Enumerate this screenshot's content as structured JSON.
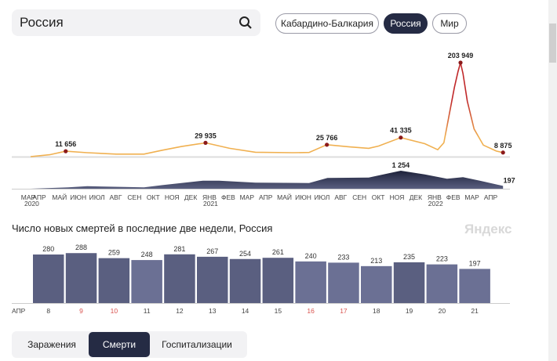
{
  "search": {
    "value": "Россия",
    "icon": "search-icon"
  },
  "regions": [
    {
      "label": "Кабардино-Балкария",
      "active": false
    },
    {
      "label": "Россия",
      "active": true
    },
    {
      "label": "Мир",
      "active": false
    }
  ],
  "overview": {
    "months": [
      "МАР",
      "АПР",
      "МАЙ",
      "ИЮН",
      "ИЮЛ",
      "АВГ",
      "СЕН",
      "ОКТ",
      "НОЯ",
      "ДЕК",
      "ЯНВ",
      "ФЕВ",
      "МАР",
      "АПР",
      "МАЙ",
      "ИЮН",
      "ИЮЛ",
      "АВГ",
      "СЕН",
      "ОКТ",
      "НОЯ",
      "ДЕК",
      "ЯНВ",
      "ФЕВ",
      "МАР",
      "АПР"
    ],
    "years": [
      {
        "month_index": 0,
        "label": "2020"
      },
      {
        "month_index": 10,
        "label": "2021"
      },
      {
        "month_index": 22,
        "label": "2022"
      }
    ],
    "cases_labels": [
      "11 656",
      "29 935",
      "25 766",
      "41 335",
      "203 949",
      "8 875"
    ],
    "deaths_labels": [
      "1 254",
      "197"
    ],
    "colors": {
      "cases_low": "#f0b050",
      "cases_high": "#c0282a",
      "deaths": "#3a3f62"
    }
  },
  "chart_data": [
    {
      "type": "line",
      "name": "cases",
      "x": [
        "2020-03-15",
        "2020-04-15",
        "2020-05-11",
        "2020-06-15",
        "2020-08-01",
        "2020-09-15",
        "2020-10-15",
        "2020-11-15",
        "2020-12-24",
        "2021-02-01",
        "2021-03-15",
        "2021-05-15",
        "2021-06-10",
        "2021-07-09",
        "2021-08-15",
        "2021-09-15",
        "2021-10-01",
        "2021-11-06",
        "2021-12-15",
        "2022-01-05",
        "2022-01-15",
        "2022-02-01",
        "2022-02-07",
        "2022-02-11",
        "2022-02-15",
        "2022-02-22",
        "2022-03-05",
        "2022-03-20",
        "2022-04-10",
        "2022-04-21"
      ],
      "y": [
        0,
        4000,
        11656,
        8500,
        5500,
        5500,
        14000,
        22000,
        29935,
        18000,
        9500,
        8500,
        9000,
        25766,
        21000,
        18000,
        23000,
        41335,
        28000,
        15000,
        30000,
        150000,
        185000,
        203949,
        180000,
        120000,
        60000,
        25000,
        12000,
        8875
      ],
      "ylim": [
        0,
        203949
      ]
    },
    {
      "type": "area",
      "name": "deaths",
      "x": [
        "2020-03-15",
        "2020-05-15",
        "2020-06-15",
        "2020-08-15",
        "2020-09-15",
        "2020-10-15",
        "2020-12-20",
        "2021-01-15",
        "2021-03-15",
        "2021-06-10",
        "2021-07-10",
        "2021-09-15",
        "2021-11-06",
        "2021-12-15",
        "2022-01-20",
        "2022-02-15",
        "2022-03-15",
        "2022-04-21"
      ],
      "y": [
        0,
        100,
        180,
        120,
        100,
        250,
        560,
        560,
        420,
        400,
        750,
        780,
        1254,
        1000,
        700,
        800,
        550,
        197
      ],
      "ylim": [
        0,
        1254
      ]
    },
    {
      "type": "bar",
      "title": "Число новых смертей в последние две недели, Россия",
      "month_label": "АПР",
      "categories": [
        "8",
        "9",
        "10",
        "11",
        "12",
        "13",
        "14",
        "15",
        "16",
        "17",
        "18",
        "19",
        "20",
        "21"
      ],
      "weekend": [
        false,
        true,
        true,
        false,
        false,
        false,
        false,
        false,
        true,
        true,
        false,
        false,
        false,
        false
      ],
      "values": [
        280,
        288,
        259,
        248,
        281,
        267,
        254,
        261,
        240,
        233,
        213,
        235,
        223,
        197
      ],
      "colors": {
        "bar_dark": "#5a5f80",
        "bar_light": "#6b7094",
        "weekend_label": "#d9534f"
      }
    }
  ],
  "watermark": "Яндекс",
  "tabs": [
    {
      "label": "Заражения",
      "active": false
    },
    {
      "label": "Смерти",
      "active": true
    },
    {
      "label": "Госпитализации",
      "active": false
    }
  ]
}
